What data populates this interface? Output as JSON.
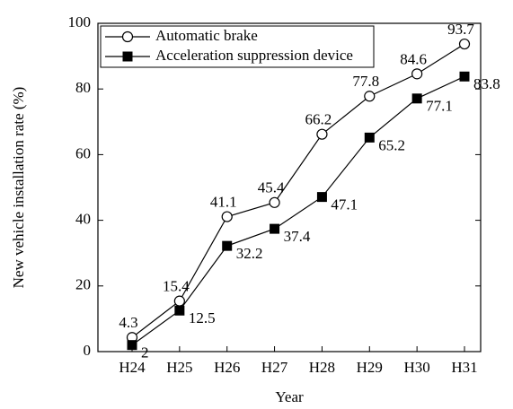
{
  "chart_data": {
    "type": "line",
    "xlabel": "Year",
    "ylabel": "New vehicle installation rate (%)",
    "categories": [
      "H24",
      "H25",
      "H26",
      "H27",
      "H28",
      "H29",
      "H30",
      "H31"
    ],
    "series": [
      {
        "name": "Automatic brake",
        "color": "#000000",
        "marker": "open-circle",
        "values": [
          4.3,
          15.4,
          41.1,
          45.4,
          66.2,
          77.8,
          84.6,
          93.7
        ]
      },
      {
        "name": "Acceleration suppression device",
        "color": "#000000",
        "marker": "filled-square",
        "values": [
          2,
          12.5,
          32.2,
          37.4,
          47.1,
          65.2,
          77.1,
          83.8
        ]
      }
    ],
    "ylim": [
      0,
      100
    ],
    "yticks": [
      0,
      20,
      40,
      60,
      80,
      100
    ],
    "legend": "upper left"
  }
}
